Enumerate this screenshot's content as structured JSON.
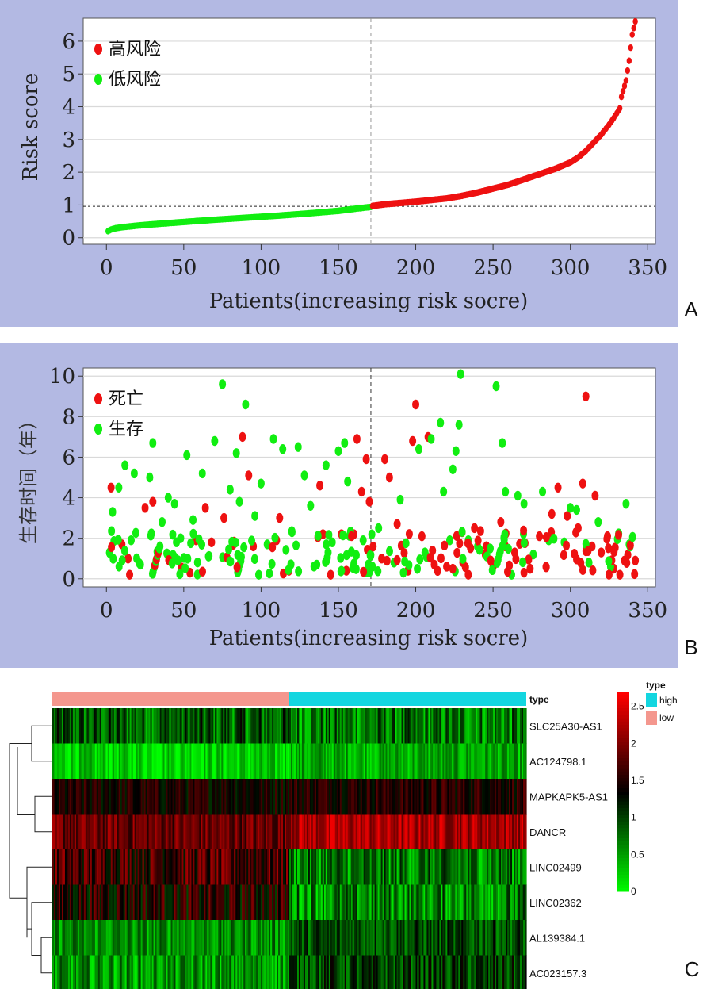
{
  "panel_labels": {
    "a": "A",
    "b": "B",
    "c": "C"
  },
  "colors": {
    "panel_bg": "#b3b9e3",
    "high": "#ee1111",
    "low": "#11ee11",
    "type_high": "#13d6e0",
    "type_low": "#f4978e",
    "heat_low": "#00ff00",
    "heat_mid": "#000000",
    "heat_high": "#ff0000"
  },
  "chart_data": [
    {
      "type": "scatter",
      "panel": "A",
      "xlabel": "Patients(increasing risk socre)",
      "ylabel": "Risk score",
      "xlim": [
        -15,
        355
      ],
      "ylim": [
        -0.2,
        6.7
      ],
      "xticks": [
        "0",
        "50",
        "100",
        "150",
        "200",
        "250",
        "300",
        "350"
      ],
      "yticks": [
        "0",
        "1",
        "2",
        "3",
        "4",
        "5",
        "6"
      ],
      "grid": true,
      "legend_position": "top-left",
      "cutoff_x": 171,
      "cutoff_y": 0.96,
      "n_patients": 342,
      "series": [
        {
          "name": "高风险",
          "color": "#ee1111",
          "x": [
            172,
            180,
            190,
            200,
            210,
            220,
            230,
            240,
            250,
            260,
            270,
            280,
            290,
            300,
            305,
            310,
            315,
            320,
            325,
            328,
            330,
            332,
            333,
            336,
            338,
            340,
            342
          ],
          "y": [
            0.97,
            1.02,
            1.06,
            1.1,
            1.15,
            1.2,
            1.28,
            1.38,
            1.5,
            1.62,
            1.78,
            1.94,
            2.1,
            2.3,
            2.45,
            2.65,
            2.9,
            3.15,
            3.45,
            3.65,
            3.8,
            3.95,
            4.3,
            4.8,
            5.4,
            6.2,
            6.6
          ]
        },
        {
          "name": "低风险",
          "color": "#11ee11",
          "x": [
            1,
            3,
            6,
            10,
            20,
            30,
            50,
            70,
            90,
            110,
            130,
            150,
            160,
            171
          ],
          "y": [
            0.2,
            0.25,
            0.29,
            0.32,
            0.37,
            0.41,
            0.48,
            0.55,
            0.61,
            0.67,
            0.74,
            0.82,
            0.88,
            0.94
          ]
        }
      ]
    },
    {
      "type": "scatter",
      "panel": "B",
      "xlabel": "Patients(increasing risk socre)",
      "ylabel": "生存时间（年）",
      "xlim": [
        -15,
        355
      ],
      "ylim": [
        -0.4,
        10.4
      ],
      "xticks": [
        "0",
        "50",
        "100",
        "150",
        "200",
        "250",
        "300",
        "350"
      ],
      "yticks": [
        "0",
        "2",
        "4",
        "6",
        "8",
        "10"
      ],
      "grid": true,
      "legend_position": "top-left",
      "cutoff_x": 171,
      "series": [
        {
          "name": "死亡",
          "color": "#ee1111",
          "points": [
            [
              3,
              4.5
            ],
            [
              10,
              1.7
            ],
            [
              14,
              1
            ],
            [
              15,
              0.2
            ],
            [
              25,
              3.5
            ],
            [
              30,
              3.8
            ],
            [
              54,
              0.3
            ],
            [
              58,
              1.9
            ],
            [
              64,
              3.5
            ],
            [
              68,
              1.8
            ],
            [
              76,
              3
            ],
            [
              88,
              7
            ],
            [
              92,
              5.1
            ],
            [
              95,
              1.6
            ],
            [
              110,
              1.9
            ],
            [
              112,
              3
            ],
            [
              118,
              0.4
            ],
            [
              138,
              4.6
            ],
            [
              140,
              2.2
            ],
            [
              145,
              0.2
            ],
            [
              152,
              2.2
            ],
            [
              160,
              2.2
            ],
            [
              162,
              6.9
            ],
            [
              165,
              4.3
            ],
            [
              168,
              5.9
            ],
            [
              170,
              3.8
            ],
            [
              178,
              1
            ],
            [
              180,
              5.9
            ],
            [
              183,
              5
            ],
            [
              188,
              2.7
            ],
            [
              195,
              0.4
            ],
            [
              198,
              6.8
            ],
            [
              200,
              8.6
            ],
            [
              204,
              2.1
            ],
            [
              208,
              7
            ],
            [
              212,
              0.7
            ],
            [
              220,
              0.6
            ],
            [
              230,
              2.3
            ],
            [
              234,
              0.2
            ],
            [
              238,
              2.5
            ],
            [
              245,
              1.2
            ],
            [
              250,
              0.6
            ],
            [
              255,
              2.8
            ],
            [
              258,
              1.6
            ],
            [
              264,
              1.3
            ],
            [
              270,
              0.3
            ],
            [
              280,
              2.1
            ],
            [
              288,
              3.2
            ],
            [
              292,
              4.5
            ],
            [
              298,
              3.1
            ],
            [
              305,
              2.5
            ],
            [
              308,
              4.7
            ],
            [
              310,
              9
            ],
            [
              314,
              1.6
            ],
            [
              316,
              4.1
            ],
            [
              320,
              1.3
            ],
            [
              324,
              2.1
            ],
            [
              328,
              0.5
            ],
            [
              332,
              0.2
            ],
            [
              335,
              0.9
            ],
            [
              342,
              0.9
            ]
          ]
        },
        {
          "name": "生存",
          "color": "#11ee11",
          "points": [
            [
              2,
              1.3
            ],
            [
              4,
              3.3
            ],
            [
              8,
              4.5
            ],
            [
              12,
              5.6
            ],
            [
              16,
              1.9
            ],
            [
              18,
              5.2
            ],
            [
              22,
              0.7
            ],
            [
              28,
              5
            ],
            [
              30,
              6.7
            ],
            [
              36,
              2.8
            ],
            [
              40,
              4
            ],
            [
              44,
              3.7
            ],
            [
              48,
              2
            ],
            [
              52,
              6.1
            ],
            [
              56,
              2.9
            ],
            [
              62,
              5.2
            ],
            [
              66,
              1.1
            ],
            [
              70,
              6.8
            ],
            [
              75,
              9.6
            ],
            [
              80,
              4.4
            ],
            [
              84,
              6.2
            ],
            [
              86,
              3.8
            ],
            [
              90,
              8.6
            ],
            [
              96,
              3.1
            ],
            [
              100,
              4.7
            ],
            [
              104,
              1.7
            ],
            [
              108,
              6.9
            ],
            [
              114,
              6.4
            ],
            [
              120,
              2.3
            ],
            [
              124,
              6.5
            ],
            [
              128,
              5.1
            ],
            [
              132,
              3.6
            ],
            [
              136,
              0.7
            ],
            [
              142,
              5.6
            ],
            [
              146,
              1.8
            ],
            [
              150,
              6.3
            ],
            [
              154,
              6.7
            ],
            [
              156,
              4.8
            ],
            [
              166,
              1.9
            ],
            [
              172,
              0.6
            ],
            [
              176,
              2.5
            ],
            [
              186,
              0.8
            ],
            [
              190,
              3.9
            ],
            [
              192,
              0.3
            ],
            [
              202,
              6.4
            ],
            [
              206,
              1.3
            ],
            [
              210,
              6.9
            ],
            [
              216,
              7.7
            ],
            [
              218,
              4.3
            ],
            [
              222,
              1.9
            ],
            [
              224,
              5.4
            ],
            [
              226,
              6.3
            ],
            [
              228,
              7.6
            ],
            [
              229,
              10.1
            ],
            [
              234,
              1.9
            ],
            [
              240,
              1.6
            ],
            [
              246,
              1.1
            ],
            [
              252,
              9.5
            ],
            [
              256,
              6.7
            ],
            [
              258,
              4.3
            ],
            [
              262,
              0.2
            ],
            [
              266,
              4.1
            ],
            [
              270,
              3.7
            ],
            [
              276,
              1.2
            ],
            [
              282,
              4.3
            ],
            [
              286,
              1.9
            ],
            [
              296,
              1.8
            ],
            [
              300,
              3.5
            ],
            [
              304,
              3.4
            ],
            [
              312,
              0.8
            ],
            [
              318,
              2.8
            ],
            [
              326,
              0.6
            ],
            [
              336,
              3.7
            ],
            [
              338,
              1.7
            ]
          ]
        }
      ]
    },
    {
      "type": "heatmap",
      "panel": "C",
      "legend_title": "type",
      "type_row_label": "type",
      "legend_items": [
        "high",
        "low"
      ],
      "color_scale_ticks": [
        "2.5",
        "2",
        "1.5",
        "1",
        "0.5",
        "0"
      ],
      "color_scale_range": [
        0,
        2.7
      ],
      "group_split_fraction": 0.5,
      "n_columns": 342,
      "rows": [
        {
          "gene": "SLC25A30-AS1",
          "base_low": 0.85,
          "base_high": 0.7,
          "spread": 0.55
        },
        {
          "gene": "AC124798.1",
          "base_low": 0.25,
          "base_high": 0.45,
          "spread": 0.35
        },
        {
          "gene": "MAPKAPK5-AS1",
          "base_low": 1.45,
          "base_high": 1.55,
          "spread": 0.35
        },
        {
          "gene": "DANCR",
          "base_low": 1.9,
          "base_high": 2.25,
          "spread": 0.4
        },
        {
          "gene": "LINC02499",
          "base_low": 1.7,
          "base_high": 0.7,
          "spread": 0.55
        },
        {
          "gene": "LINC02362",
          "base_low": 1.5,
          "base_high": 0.65,
          "spread": 0.55
        },
        {
          "gene": "AL139384.1",
          "base_low": 0.6,
          "base_high": 0.95,
          "spread": 0.4
        },
        {
          "gene": "AC023157.3",
          "base_low": 0.55,
          "base_high": 1.0,
          "spread": 0.45
        }
      ]
    }
  ]
}
